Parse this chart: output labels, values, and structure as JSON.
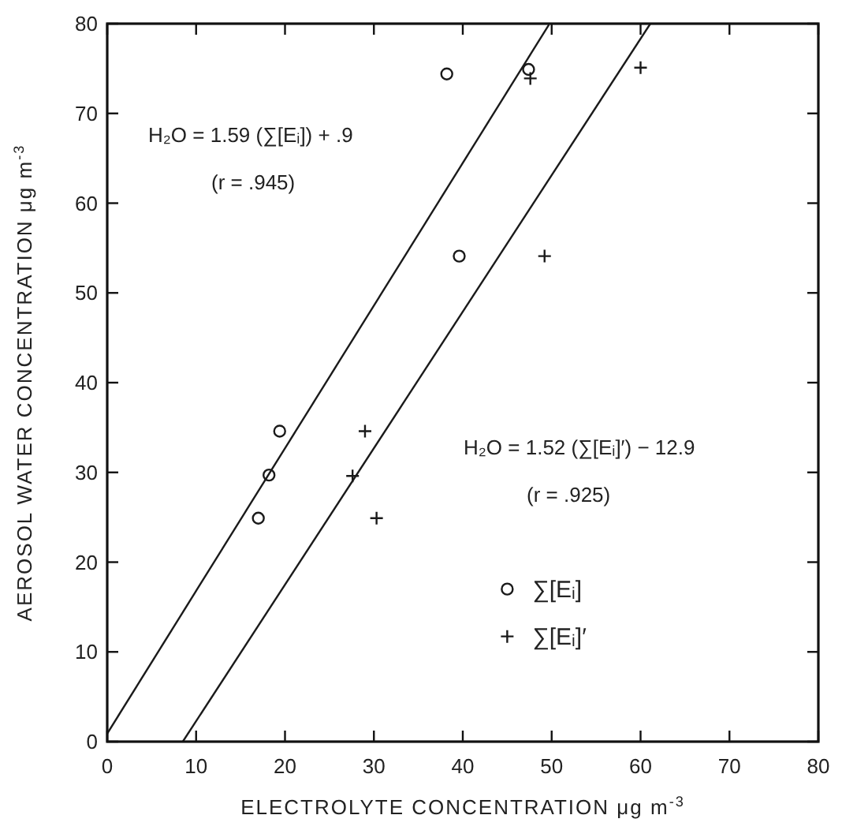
{
  "chart_data": {
    "type": "scatter",
    "xlabel": "ELECTROLYTE CONCENTRATION  μg m$^{-3}$",
    "ylabel": "AEROSOL WATER CONCENTRATION  μg m$^{-3}$",
    "xlim": [
      0,
      80
    ],
    "ylim": [
      0,
      80
    ],
    "xticks": [
      0,
      10,
      20,
      30,
      40,
      50,
      60,
      70,
      80
    ],
    "yticks": [
      0,
      10,
      20,
      30,
      40,
      50,
      60,
      70,
      80
    ],
    "legend": "bottom right",
    "grid": false,
    "series": [
      {
        "name": "∑[Eᵢ]",
        "color": "#1a1a1a",
        "marker": "circle",
        "x": [
          38.2,
          47.4,
          39.6,
          19.4,
          18.2,
          17.0
        ],
        "values": [
          74.4,
          74.9,
          54.1,
          34.6,
          29.7,
          24.9
        ]
      },
      {
        "name": "∑[Eᵢ]′",
        "color": "#1a1a1a",
        "marker": "cross",
        "x": [
          47.6,
          60.0,
          49.2,
          29.0,
          27.6,
          30.3
        ],
        "values": [
          73.9,
          75.1,
          54.1,
          34.6,
          29.6,
          24.9
        ]
      },
      {
        "type": "line",
        "color": "#1a1a1a",
        "marker": "none",
        "x": [
          0,
          49.7
        ],
        "values": [
          0.9,
          79.9
        ]
      },
      {
        "type": "line",
        "color": "#1a1a1a",
        "marker": "none",
        "x": [
          8.5,
          61.1
        ],
        "values": [
          0,
          80
        ]
      }
    ],
    "annotations": [
      "H₂O = 1.59 (∑[Eᵢ]) + .9",
      "(r = .945)",
      "H₂O = 1.52 (∑[Eᵢ]′) − 12.9",
      "(r = .925)"
    ]
  }
}
